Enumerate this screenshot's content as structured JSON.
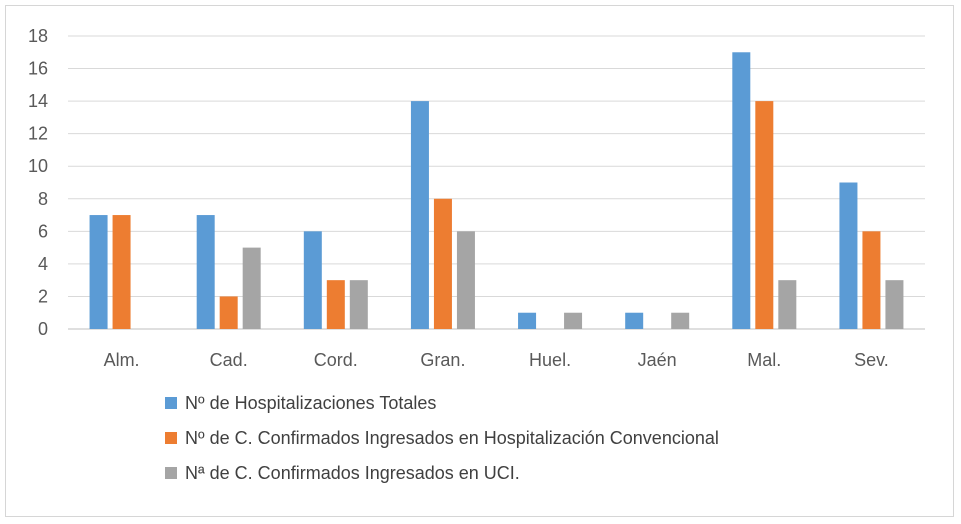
{
  "chart_data": {
    "type": "bar",
    "categories": [
      "Alm.",
      "Cad.",
      "Cord.",
      "Gran.",
      "Huel.",
      "Jaén",
      "Mal.",
      "Sev."
    ],
    "series": [
      {
        "name": "Nº de Hospitalizaciones Totales",
        "color": "#5b9bd5",
        "values": [
          7,
          7,
          6,
          14,
          1,
          1,
          17,
          9
        ]
      },
      {
        "name": "Nº de C. Confirmados Ingresados en Hospitalización Convencional",
        "color": "#ed7d31",
        "values": [
          7,
          2,
          3,
          8,
          0,
          0,
          14,
          6
        ]
      },
      {
        "name": "Nª de C. Confirmados Ingresados en UCI.",
        "color": "#a5a5a5",
        "values": [
          0,
          5,
          3,
          6,
          1,
          1,
          3,
          3
        ]
      }
    ],
    "ylim": [
      0,
      18
    ],
    "yticks": [
      0,
      2,
      4,
      6,
      8,
      10,
      12,
      14,
      16,
      18
    ],
    "grid": true,
    "legend_position": "bottom"
  }
}
